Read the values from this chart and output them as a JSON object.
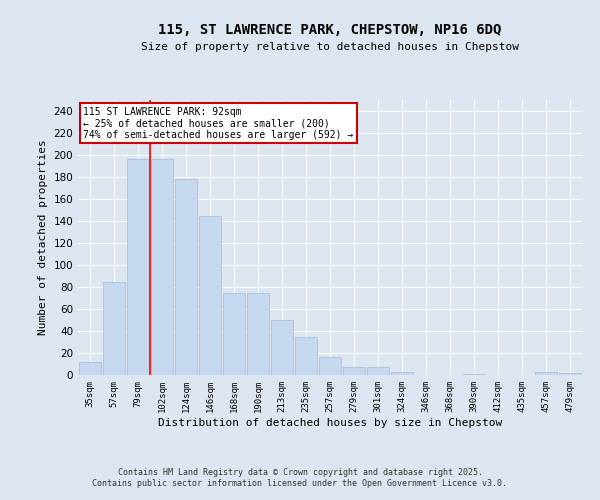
{
  "title_line1": "115, ST LAWRENCE PARK, CHEPSTOW, NP16 6DQ",
  "title_line2": "Size of property relative to detached houses in Chepstow",
  "xlabel": "Distribution of detached houses by size in Chepstow",
  "ylabel": "Number of detached properties",
  "bar_color": "#c5d8f0",
  "bar_edge_color": "#a0bbdb",
  "background_color": "#dde6f0",
  "grid_color": "#ffffff",
  "categories": [
    "35sqm",
    "57sqm",
    "79sqm",
    "102sqm",
    "124sqm",
    "146sqm",
    "168sqm",
    "190sqm",
    "213sqm",
    "235sqm",
    "257sqm",
    "279sqm",
    "301sqm",
    "324sqm",
    "346sqm",
    "368sqm",
    "390sqm",
    "412sqm",
    "435sqm",
    "457sqm",
    "479sqm"
  ],
  "values": [
    12,
    85,
    196,
    196,
    178,
    145,
    75,
    75,
    50,
    35,
    16,
    7,
    7,
    3,
    0,
    0,
    1,
    0,
    0,
    3,
    2
  ],
  "ylim": [
    0,
    250
  ],
  "yticks": [
    0,
    20,
    40,
    60,
    80,
    100,
    120,
    140,
    160,
    180,
    200,
    220,
    240
  ],
  "red_line_x": 2.5,
  "annotation_text": "115 ST LAWRENCE PARK: 92sqm\n← 25% of detached houses are smaller (200)\n74% of semi-detached houses are larger (592) →",
  "annotation_box_color": "#ffffff",
  "annotation_box_edge_color": "#cc0000",
  "footer_line1": "Contains HM Land Registry data © Crown copyright and database right 2025.",
  "footer_line2": "Contains public sector information licensed under the Open Government Licence v3.0."
}
